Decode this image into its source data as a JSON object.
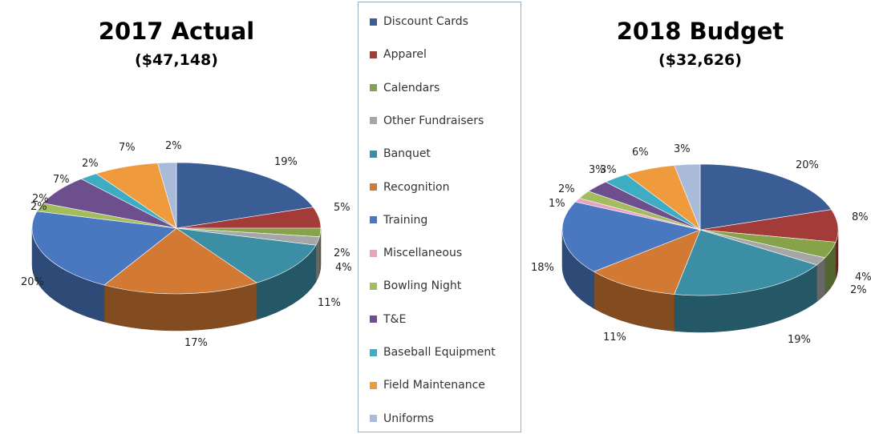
{
  "chart_data": [
    {
      "type": "pie",
      "title": "2017 Actual",
      "subtitle": "($47,148)",
      "slices": [
        {
          "category": "Discount Cards",
          "value": 19,
          "label": "19%"
        },
        {
          "category": "Apparel",
          "value": 5,
          "label": "5%"
        },
        {
          "category": "Calendars",
          "value": 2,
          "label": ""
        },
        {
          "category": "Other Fundraisers",
          "value": 2,
          "label": "2%"
        },
        {
          "category": "Banquet",
          "value": 11,
          "label": "11%"
        },
        {
          "category": "Recognition",
          "value": 17,
          "label": "17%"
        },
        {
          "category": "Training",
          "value": 20,
          "label": "20%"
        },
        {
          "category": "Miscellaneous",
          "value": 0,
          "label": ""
        },
        {
          "category": "Bowling Night",
          "value": 2,
          "label": "2%"
        },
        {
          "category": "T&E",
          "value": 7,
          "label": "7%"
        },
        {
          "category": "Baseball Equipment",
          "value": 2,
          "label": "2%"
        },
        {
          "category": "Field Maintenance",
          "value": 7,
          "label": "7%"
        },
        {
          "category": "Uniforms",
          "value": 2,
          "label": "2%"
        }
      ],
      "extra_labels": [
        "4%",
        "2%"
      ]
    },
    {
      "type": "pie",
      "title": "2018 Budget",
      "subtitle": "($32,626)",
      "slices": [
        {
          "category": "Discount Cards",
          "value": 20,
          "label": "20%"
        },
        {
          "category": "Apparel",
          "value": 8,
          "label": "8%"
        },
        {
          "category": "Calendars",
          "value": 4,
          "label": "4%"
        },
        {
          "category": "Other Fundraisers",
          "value": 2,
          "label": "2%"
        },
        {
          "category": "Banquet",
          "value": 19,
          "label": "19%"
        },
        {
          "category": "Recognition",
          "value": 11,
          "label": "11%"
        },
        {
          "category": "Training",
          "value": 18,
          "label": "18%"
        },
        {
          "category": "Miscellaneous",
          "value": 1,
          "label": "1%"
        },
        {
          "category": "Bowling Night",
          "value": 2,
          "label": "2%"
        },
        {
          "category": "T&E",
          "value": 3,
          "label": "3%"
        },
        {
          "category": "Baseball Equipment",
          "value": 3,
          "label": "3%"
        },
        {
          "category": "Field Maintenance",
          "value": 6,
          "label": "6%"
        },
        {
          "category": "Uniforms",
          "value": 3,
          "label": "3%"
        }
      ],
      "extra_labels": []
    }
  ],
  "legend": {
    "placement": "center",
    "items": [
      {
        "label": "Discount Cards",
        "color": "#3b5d96"
      },
      {
        "label": "Apparel",
        "color": "#a33b38"
      },
      {
        "label": "Calendars",
        "color": "#86a34a"
      },
      {
        "label": "Other Fundraisers",
        "color": "#a6a6a6"
      },
      {
        "label": "Banquet",
        "color": "#3c8ea5"
      },
      {
        "label": "Recognition",
        "color": "#d27a33"
      },
      {
        "label": "Training",
        "color": "#4a78c0"
      },
      {
        "label": "Miscellaneous",
        "color": "#e8a3c3"
      },
      {
        "label": "Bowling Night",
        "color": "#a3bc5e"
      },
      {
        "label": "T&E",
        "color": "#6c4f8c"
      },
      {
        "label": "Baseball Equipment",
        "color": "#3eadc3"
      },
      {
        "label": "Field Maintenance",
        "color": "#f09a3e"
      },
      {
        "label": "Uniforms",
        "color": "#aabbd9"
      }
    ]
  }
}
